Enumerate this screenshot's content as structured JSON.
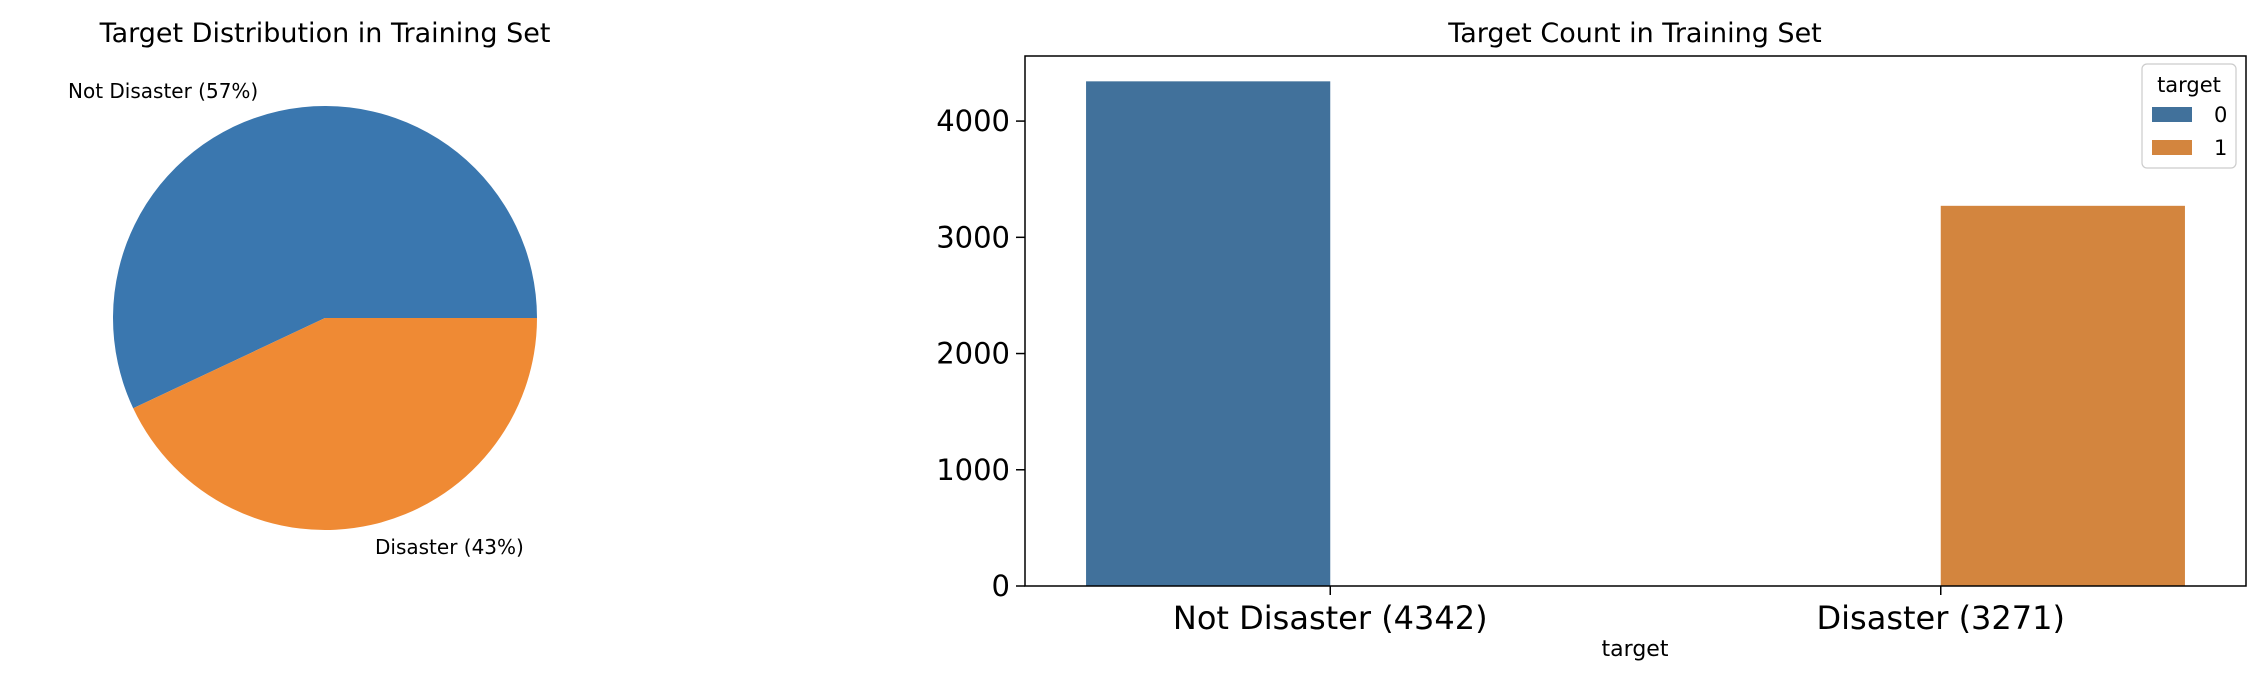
{
  "chart_data": [
    {
      "type": "pie",
      "title": "Target Distribution in Training Set",
      "labels": [
        "Not Disaster (57%)",
        "Disaster (43%)"
      ],
      "values": [
        57,
        43
      ],
      "colors": [
        "#3a77af",
        "#ef8a34"
      ]
    },
    {
      "type": "bar",
      "title": "Target Count in Training Set",
      "categories": [
        "Not Disaster (4342)",
        "Disaster (3271)"
      ],
      "xlabel": "target",
      "ylabel": "",
      "ylim": [
        0,
        4560
      ],
      "yticks": [
        0,
        1000,
        2000,
        3000,
        4000
      ],
      "legend": {
        "title": "target",
        "entries": [
          "0",
          "1"
        ],
        "placement": "top-right"
      },
      "series": [
        {
          "name": "0",
          "values": [
            4342,
            null
          ],
          "color": "#41719b"
        },
        {
          "name": "1",
          "values": [
            null,
            3271
          ],
          "color": "#d3853e"
        }
      ]
    }
  ]
}
